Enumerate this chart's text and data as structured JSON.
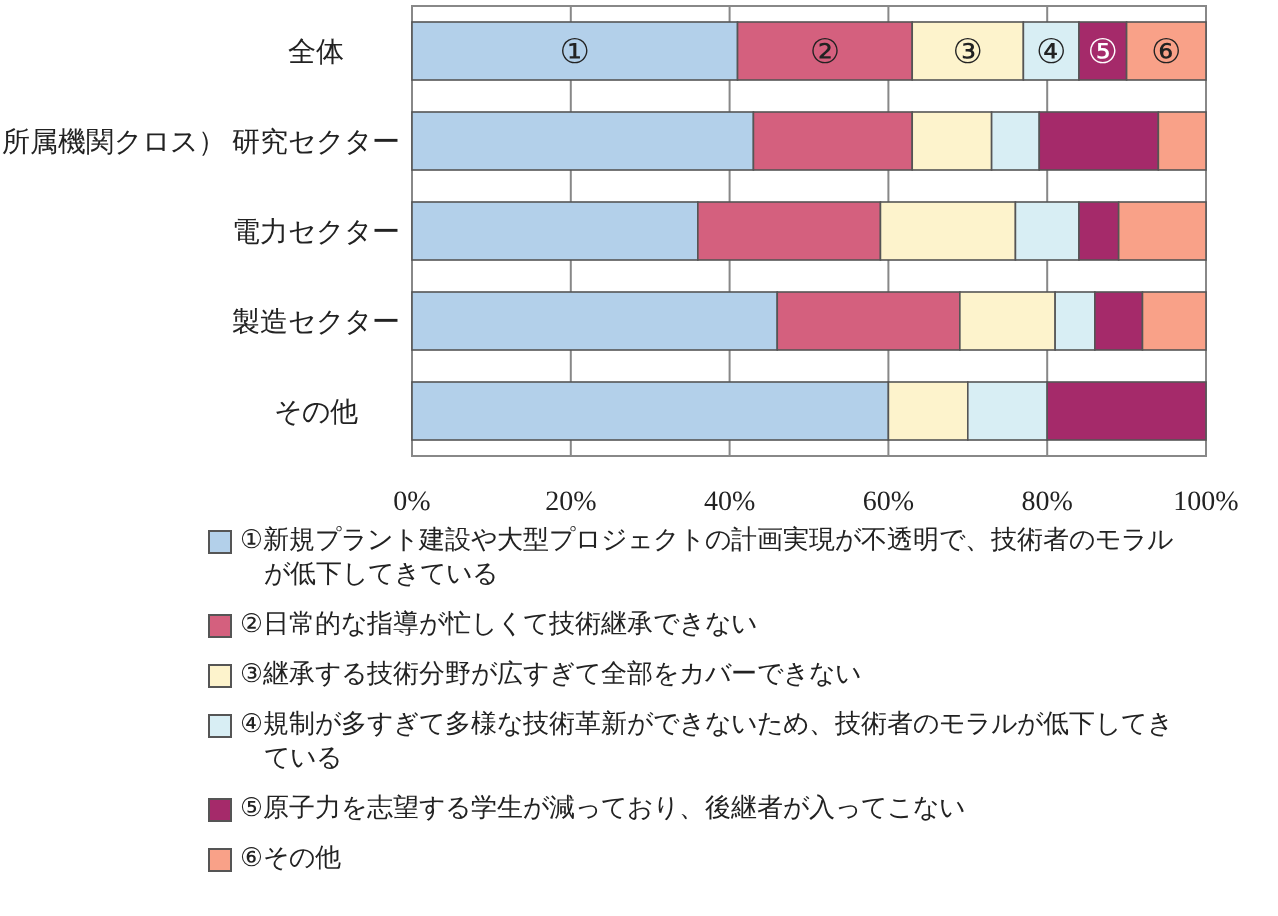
{
  "chart_data": {
    "type": "bar",
    "orientation": "horizontal",
    "stacked": true,
    "ylabel": "所属機関クロス）",
    "categories": [
      "全体",
      "研究セクター",
      "電力セクター",
      "製造セクター",
      "その他"
    ],
    "series": [
      {
        "name": "①新規プラント建設や大型プロジェクトの計画実現が不透明で、技術者のモラルが低下してきている",
        "color": "#b3d0ea",
        "values": [
          41,
          43,
          36,
          46,
          60
        ],
        "value_labels": [
          "①",
          null,
          null,
          null,
          null
        ]
      },
      {
        "name": "②日常的な指導が忙しくて技術継承できない",
        "color": "#d4607e",
        "values": [
          22,
          20,
          23,
          23,
          null
        ],
        "value_labels": [
          "②",
          null,
          null,
          null,
          null
        ]
      },
      {
        "name": "③継承する技術分野が広すぎて全部をカバーできない",
        "color": "#fdf3cc",
        "values": [
          14,
          10,
          17,
          12,
          10
        ],
        "value_labels": [
          "③",
          null,
          null,
          null,
          null
        ]
      },
      {
        "name": "④規制が多すぎて多様な技術革新ができないため、技術者のモラルが低下してきている",
        "color": "#d8eef4",
        "values": [
          7,
          6,
          8,
          5,
          10
        ],
        "value_labels": [
          "④",
          null,
          null,
          null,
          null
        ]
      },
      {
        "name": "⑤原子力を志望する学生が減っており、後継者が入ってこない",
        "color": "#a52a6a",
        "values": [
          6,
          15,
          5,
          6,
          20
        ],
        "value_labels": [
          "⑤",
          null,
          null,
          null,
          null
        ]
      },
      {
        "name": "⑥その他",
        "color": "#f9a188",
        "values": [
          10,
          6,
          11,
          8,
          null
        ],
        "value_labels": [
          "⑥",
          null,
          null,
          null,
          null
        ]
      }
    ],
    "xlim": [
      0,
      100
    ],
    "xticks": [
      {
        "value": 0,
        "label": "0%"
      },
      {
        "value": 20,
        "label": "20%"
      },
      {
        "value": 40,
        "label": "40%"
      },
      {
        "value": 60,
        "label": "60%"
      },
      {
        "value": 80,
        "label": "80%"
      },
      {
        "value": 100,
        "label": "100%"
      }
    ],
    "grid": "x",
    "legend": "bottom"
  }
}
